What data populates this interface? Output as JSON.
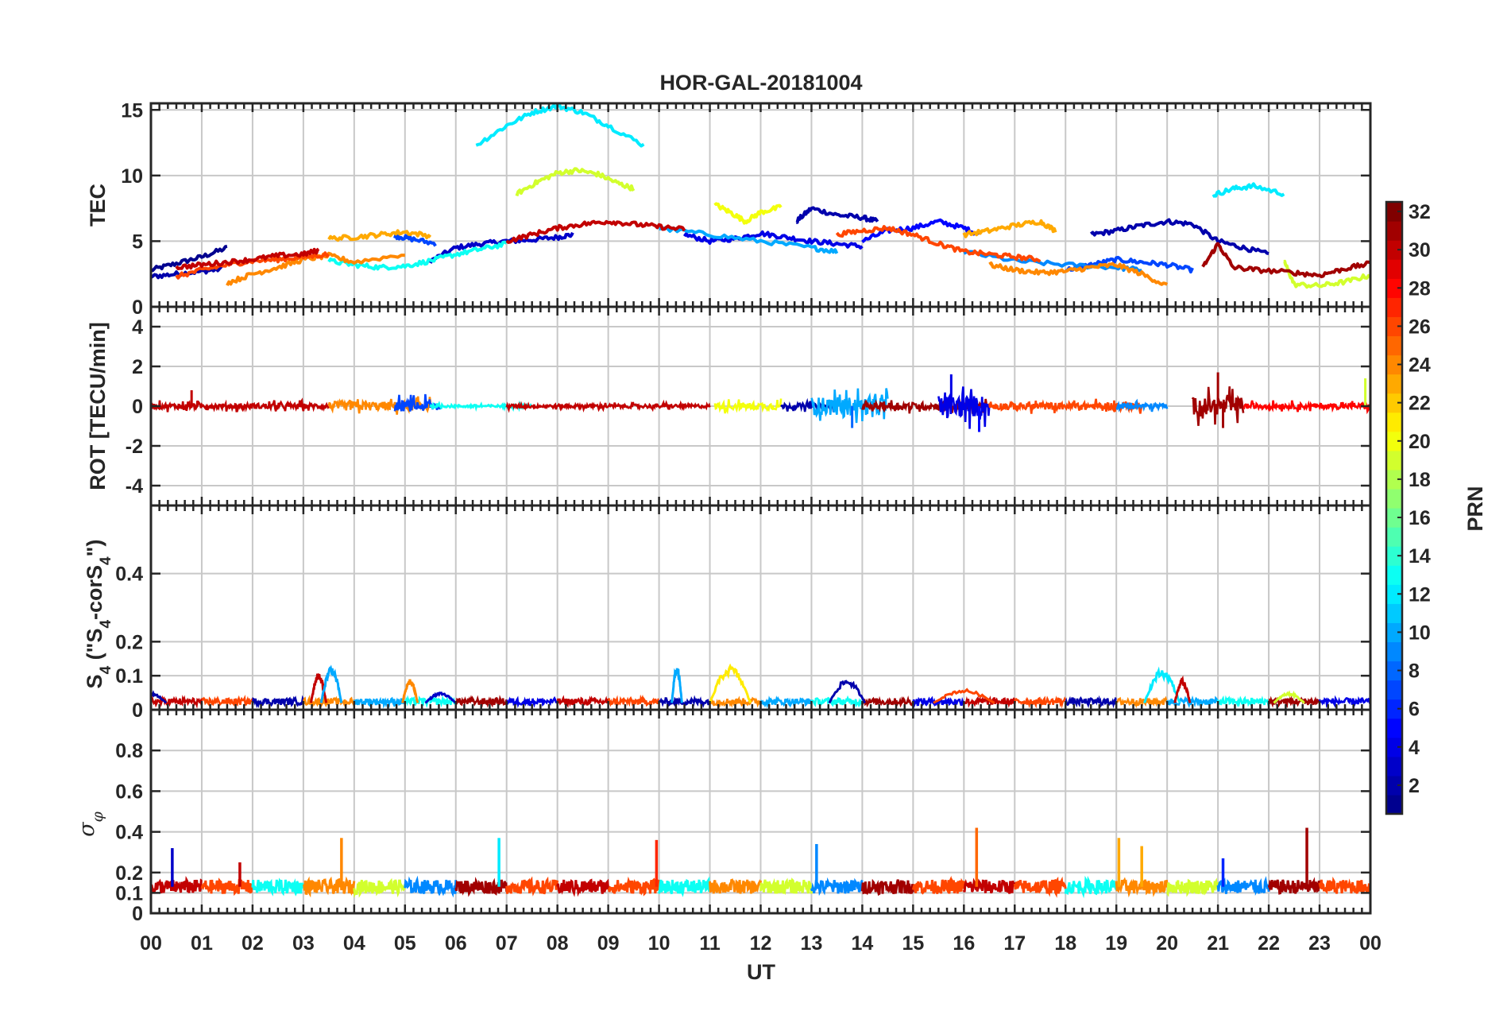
{
  "title": "HOR-GAL-20181004",
  "xlabel": "UT",
  "x_ticks": [
    "00",
    "01",
    "02",
    "03",
    "04",
    "05",
    "06",
    "07",
    "08",
    "09",
    "10",
    "11",
    "12",
    "13",
    "14",
    "15",
    "16",
    "17",
    "18",
    "19",
    "20",
    "21",
    "22",
    "23",
    "00"
  ],
  "colorbar": {
    "label": "PRN",
    "range": [
      1,
      32
    ],
    "ticks": [
      "2",
      "4",
      "6",
      "8",
      "10",
      "12",
      "14",
      "16",
      "18",
      "20",
      "22",
      "24",
      "26",
      "28",
      "30",
      "32"
    ],
    "colormap": [
      "#00008f",
      "#0000ff",
      "#0080ff",
      "#00ffff",
      "#80ff80",
      "#ffff00",
      "#ff8000",
      "#ff0000",
      "#800000"
    ]
  },
  "chart_data": [
    {
      "type": "line",
      "panel": "TEC",
      "ylabel": "TEC",
      "xlim": [
        0,
        24
      ],
      "ylim": [
        0,
        15.5
      ],
      "yticks": [
        "0",
        "5",
        "10",
        "15"
      ],
      "series": [
        {
          "prn": 1,
          "x": [
            0.0,
            0.5,
            1.0,
            1.5
          ],
          "y": [
            2.8,
            3.3,
            3.8,
            4.5
          ]
        },
        {
          "prn": 2,
          "x": [
            0.0,
            0.5,
            1.0,
            1.4
          ],
          "y": [
            2.3,
            2.5,
            2.7,
            2.9
          ]
        },
        {
          "prn": 3,
          "x": [
            5.5,
            6.0,
            6.5,
            7.0,
            7.5,
            8.0,
            8.3
          ],
          "y": [
            3.5,
            4.5,
            4.8,
            5.0,
            5.1,
            5.3,
            5.5
          ]
        },
        {
          "prn": 2,
          "x": [
            12.7,
            13.0,
            13.5,
            14.0,
            14.3
          ],
          "y": [
            6.5,
            7.5,
            7.0,
            6.8,
            6.5
          ]
        },
        {
          "prn": 2,
          "x": [
            18.5,
            19.0,
            19.5,
            20.0,
            20.5,
            21.0,
            21.5,
            22.0
          ],
          "y": [
            5.5,
            5.8,
            6.2,
            6.5,
            6.3,
            5.0,
            4.5,
            4.0
          ]
        },
        {
          "prn": 4,
          "x": [
            10.5,
            11.0,
            11.5,
            12.0,
            12.5,
            13.0,
            13.5,
            14.0
          ],
          "y": [
            5.5,
            5.0,
            5.2,
            5.6,
            5.3,
            5.0,
            4.8,
            4.6
          ]
        },
        {
          "prn": 5,
          "x": [
            14.0,
            14.5,
            15.0,
            15.5,
            16.0,
            16.3
          ],
          "y": [
            5.0,
            5.8,
            6.0,
            6.5,
            6.0,
            5.5
          ]
        },
        {
          "prn": 7,
          "x": [
            4.8,
            5.1,
            5.6
          ],
          "y": [
            5.4,
            5.2,
            4.8
          ]
        },
        {
          "prn": 7,
          "x": [
            18.0,
            18.5,
            19.0,
            19.5,
            20.0,
            20.5
          ],
          "y": [
            2.8,
            3.2,
            3.6,
            3.4,
            3.2,
            2.8
          ]
        },
        {
          "prn": 9,
          "x": [
            16.0,
            17.0,
            18.0,
            19.0,
            19.5
          ],
          "y": [
            4.2,
            3.5,
            3.2,
            3.0,
            2.8
          ]
        },
        {
          "prn": 10,
          "x": [
            10.0,
            11.0,
            12.0,
            13.0,
            13.5
          ],
          "y": [
            6.0,
            5.5,
            5.0,
            4.5,
            4.2
          ]
        },
        {
          "prn": 12,
          "x": [
            6.4,
            7.0,
            7.5,
            8.0,
            8.5,
            9.0,
            9.7
          ],
          "y": [
            12.3,
            13.8,
            14.8,
            15.3,
            14.8,
            13.8,
            12.3
          ]
        },
        {
          "prn": 12,
          "x": [
            20.9,
            21.3,
            21.7,
            22.3
          ],
          "y": [
            8.5,
            9.0,
            9.2,
            8.6
          ]
        },
        {
          "prn": 13,
          "x": [
            3.5,
            4.0,
            4.5,
            5.0,
            5.5,
            6.0,
            6.5,
            7.0
          ],
          "y": [
            3.5,
            3.2,
            3.0,
            3.1,
            3.5,
            4.0,
            4.4,
            4.8
          ]
        },
        {
          "prn": 19,
          "x": [
            7.2,
            7.6,
            8.0,
            8.4,
            8.8,
            9.2,
            9.5
          ],
          "y": [
            8.6,
            9.5,
            10.2,
            10.4,
            10.1,
            9.4,
            9.0
          ]
        },
        {
          "prn": 20,
          "x": [
            11.1,
            11.4,
            11.7,
            12.0,
            12.4
          ],
          "y": [
            7.8,
            7.2,
            6.5,
            7.2,
            7.6
          ]
        },
        {
          "prn": 19,
          "x": [
            22.3,
            22.5,
            23.0,
            23.5,
            24.0
          ],
          "y": [
            3.5,
            1.7,
            1.6,
            1.9,
            2.4
          ]
        },
        {
          "prn": 23,
          "x": [
            3.5,
            4.0,
            4.5,
            5.0,
            5.5
          ],
          "y": [
            5.2,
            5.3,
            5.5,
            5.7,
            5.4
          ]
        },
        {
          "prn": 23,
          "x": [
            16.0,
            16.5,
            17.0,
            17.5,
            17.8
          ],
          "y": [
            5.5,
            5.8,
            6.2,
            6.5,
            5.8
          ]
        },
        {
          "prn": 24,
          "x": [
            1.5,
            2.0,
            2.5,
            3.0,
            3.5,
            4.0,
            5.0
          ],
          "y": [
            1.8,
            2.5,
            3.0,
            3.6,
            3.9,
            3.4,
            4.0
          ]
        },
        {
          "prn": 24,
          "x": [
            16.5,
            17.0,
            17.5,
            18.0,
            18.5,
            19.0,
            19.5,
            20.0
          ],
          "y": [
            3.2,
            2.8,
            2.6,
            2.7,
            3.0,
            3.2,
            2.5,
            1.6
          ]
        },
        {
          "prn": 26,
          "x": [
            0.5,
            1.0,
            1.5,
            2.0,
            2.5,
            3.0,
            3.5
          ],
          "y": [
            2.3,
            2.8,
            3.2,
            3.5,
            3.6,
            3.8,
            4.0
          ]
        },
        {
          "prn": 26,
          "x": [
            13.5,
            14.0,
            14.5,
            15.0,
            15.5,
            16.0,
            16.5,
            17.0,
            17.5
          ],
          "y": [
            5.5,
            5.8,
            6.0,
            5.5,
            4.8,
            4.2,
            4.0,
            3.8,
            3.6
          ]
        },
        {
          "prn": 30,
          "x": [
            0.5,
            1.0,
            1.5,
            2.0,
            2.5,
            3.0,
            3.3
          ],
          "y": [
            3.0,
            3.2,
            3.4,
            3.6,
            3.9,
            4.0,
            4.3
          ]
        },
        {
          "prn": 30,
          "x": [
            7.0,
            7.5,
            8.0,
            8.5,
            9.0,
            9.5,
            10.0,
            10.5
          ],
          "y": [
            5.0,
            5.5,
            6.0,
            6.3,
            6.5,
            6.3,
            6.1,
            5.9
          ]
        },
        {
          "prn": 31,
          "x": [
            20.7,
            21.0,
            21.3,
            21.8,
            22.5,
            23.0,
            23.5,
            24.0
          ],
          "y": [
            3.0,
            4.8,
            3.0,
            2.8,
            2.6,
            2.4,
            2.9,
            3.3
          ]
        }
      ]
    },
    {
      "type": "line",
      "panel": "ROT",
      "ylabel": "ROT [TECU/min]",
      "xlim": [
        0,
        24
      ],
      "ylim": [
        -5,
        5
      ],
      "yticks": [
        "-4",
        "-2",
        "0",
        "2",
        "4"
      ],
      "description_segments": [
        {
          "prn": 30,
          "start": 0.0,
          "end": 3.5,
          "amp": 0.3
        },
        {
          "prn": 24,
          "start": 3.5,
          "end": 5.5,
          "amp": 0.5
        },
        {
          "prn": 7,
          "start": 4.8,
          "end": 5.7,
          "amp": 0.6
        },
        {
          "prn": 13,
          "start": 5.5,
          "end": 7.5,
          "amp": 0.15
        },
        {
          "prn": 30,
          "start": 7.0,
          "end": 11.0,
          "amp": 0.2
        },
        {
          "prn": 20,
          "start": 11.1,
          "end": 12.4,
          "amp": 0.4
        },
        {
          "prn": 2,
          "start": 12.4,
          "end": 13.5,
          "amp": 0.3
        },
        {
          "prn": 10,
          "start": 13.0,
          "end": 14.5,
          "amp": 1.0
        },
        {
          "prn": 31,
          "start": 14.0,
          "end": 16.5,
          "amp": 0.4
        },
        {
          "prn": 4,
          "start": 15.5,
          "end": 16.5,
          "amp": 1.2
        },
        {
          "prn": 26,
          "start": 16.5,
          "end": 19.5,
          "amp": 0.4
        },
        {
          "prn": 9,
          "start": 19.0,
          "end": 20.0,
          "amp": 0.3
        },
        {
          "prn": 31,
          "start": 20.5,
          "end": 21.5,
          "amp": 1.0
        },
        {
          "prn": 28,
          "start": 21.5,
          "end": 24.0,
          "amp": 0.3
        }
      ],
      "spikes": [
        {
          "prn": 30,
          "x": 0.8,
          "y": 0.8
        },
        {
          "prn": 4,
          "x": 15.75,
          "y": 1.6
        },
        {
          "prn": 5,
          "x": 16.3,
          "y": -1.3
        },
        {
          "prn": 8,
          "x": 13.8,
          "y": -1.1
        },
        {
          "prn": 31,
          "x": 21.0,
          "y": 1.7
        },
        {
          "prn": 31,
          "x": 21.1,
          "y": -1.1
        },
        {
          "prn": 19,
          "x": 23.9,
          "y": 1.4
        }
      ]
    },
    {
      "type": "line",
      "panel": "S4",
      "ylabel_parts": [
        "S",
        "4",
        " (\"S",
        "4",
        "-corS",
        "4",
        "\")"
      ],
      "xlim": [
        0,
        24
      ],
      "ylim": [
        0,
        0.6
      ],
      "yticks": [
        "0",
        "0.1",
        "0.2",
        "0.4"
      ],
      "baseline": 0.02,
      "bumps": [
        {
          "prn": 2,
          "x": 0.0,
          "width": 0.6,
          "peak": 0.05
        },
        {
          "prn": 30,
          "x": 3.3,
          "width": 0.3,
          "peak": 0.11
        },
        {
          "prn": 10,
          "x": 3.55,
          "width": 0.4,
          "peak": 0.13
        },
        {
          "prn": 24,
          "x": 5.1,
          "width": 0.3,
          "peak": 0.09
        },
        {
          "prn": 3,
          "x": 5.7,
          "width": 0.6,
          "peak": 0.05
        },
        {
          "prn": 10,
          "x": 10.35,
          "width": 0.2,
          "peak": 0.13
        },
        {
          "prn": 21,
          "x": 11.4,
          "width": 0.8,
          "peak": 0.13
        },
        {
          "prn": 2,
          "x": 13.7,
          "width": 0.7,
          "peak": 0.09
        },
        {
          "prn": 26,
          "x": 16.0,
          "width": 1.2,
          "peak": 0.06
        },
        {
          "prn": 12,
          "x": 19.9,
          "width": 0.7,
          "peak": 0.12
        },
        {
          "prn": 30,
          "x": 20.3,
          "width": 0.3,
          "peak": 0.09
        },
        {
          "prn": 19,
          "x": 22.4,
          "width": 0.6,
          "peak": 0.05
        }
      ]
    },
    {
      "type": "line",
      "panel": "sigma_phi",
      "ylabel_parts": [
        "σ",
        "φ"
      ],
      "xlim": [
        0,
        24
      ],
      "ylim": [
        0,
        1.0
      ],
      "yticks": [
        "0",
        "0.1",
        "0.2",
        "0.4",
        "0.6",
        "0.8"
      ],
      "baseline": 0.13,
      "spikes": [
        {
          "prn": 3,
          "x": 0.42,
          "y": 0.32
        },
        {
          "prn": 30,
          "x": 1.75,
          "y": 0.25
        },
        {
          "prn": 24,
          "x": 3.75,
          "y": 0.37
        },
        {
          "prn": 12,
          "x": 6.85,
          "y": 0.37
        },
        {
          "prn": 27,
          "x": 9.95,
          "y": 0.36
        },
        {
          "prn": 9,
          "x": 13.1,
          "y": 0.34
        },
        {
          "prn": 25,
          "x": 16.25,
          "y": 0.42
        },
        {
          "prn": 23,
          "x": 19.05,
          "y": 0.37
        },
        {
          "prn": 23,
          "x": 19.5,
          "y": 0.33
        },
        {
          "prn": 6,
          "x": 21.1,
          "y": 0.27
        },
        {
          "prn": 31,
          "x": 22.75,
          "y": 0.42
        }
      ]
    }
  ]
}
